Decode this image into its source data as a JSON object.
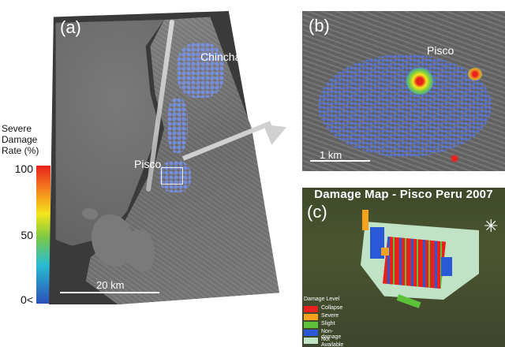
{
  "colorbar": {
    "title_lines": [
      "Severe",
      "Damage",
      "Rate (%)"
    ],
    "tick_labels": [
      "100",
      "50",
      "0<"
    ],
    "colors": [
      "#e8211c",
      "#f5861f",
      "#f5e51c",
      "#7ac943",
      "#29bcd4",
      "#2b4fb8"
    ]
  },
  "panel_a": {
    "label": "(a)",
    "place_chincha": "Chincha",
    "place_pisco": "Pisco",
    "scale": "20 km"
  },
  "panel_b": {
    "label": "(b)",
    "place_pisco": "Pisco",
    "scale": "1 km"
  },
  "panel_c": {
    "label": "(c)",
    "title": "Damage Map - Pisco Peru 2007",
    "legend_title": "Damage Level",
    "legend": [
      {
        "label": "Collapse",
        "color": "#e8211c"
      },
      {
        "label": "Severe",
        "color": "#f5a21f"
      },
      {
        "label": "Slight",
        "color": "#5cc23a"
      },
      {
        "label": "Non-damage",
        "color": "#2b58d6"
      },
      {
        "label": "Not Available",
        "color": "#bfe3c4"
      }
    ]
  }
}
